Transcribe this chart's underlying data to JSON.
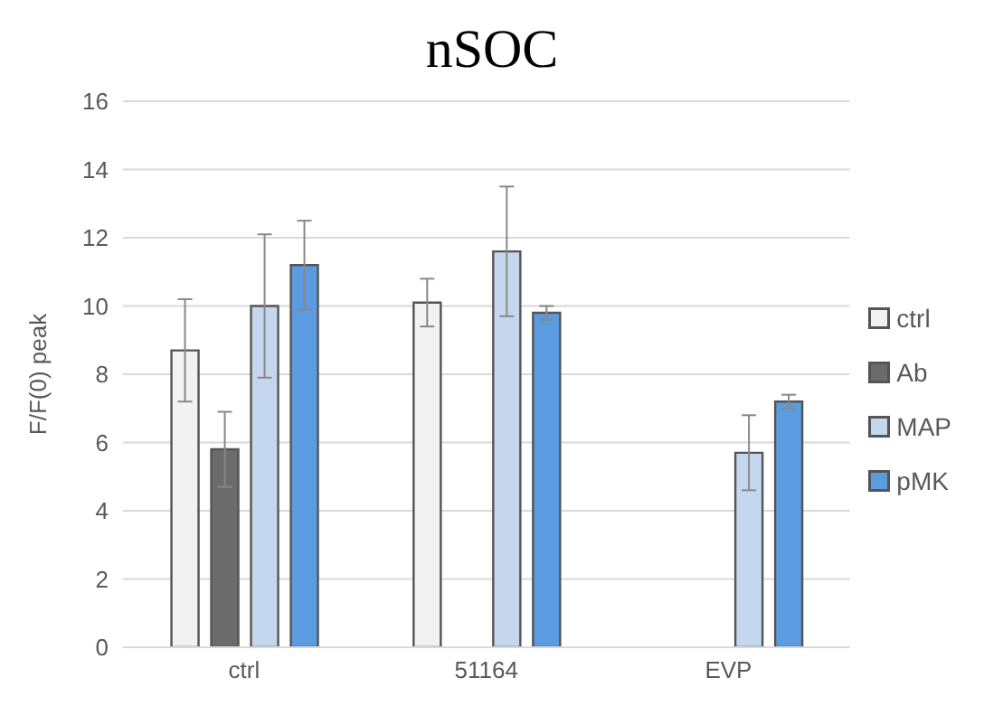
{
  "chart_data": {
    "type": "bar",
    "title": "nSOC",
    "ylabel": "F/F(0) peak",
    "categories": [
      "ctrl",
      "51164",
      "EVP"
    ],
    "series": [
      {
        "name": "ctrl",
        "color": "#f2f2f2",
        "values": [
          8.7,
          10.1,
          null
        ],
        "errors": [
          1.5,
          0.7,
          null
        ]
      },
      {
        "name": "Ab",
        "color": "#6b6b6b",
        "values": [
          5.8,
          null,
          null
        ],
        "errors": [
          1.1,
          null,
          null
        ]
      },
      {
        "name": "MAP",
        "color": "#c5d7ee",
        "values": [
          10.0,
          11.6,
          5.7
        ],
        "errors": [
          2.1,
          1.9,
          1.1
        ]
      },
      {
        "name": "pMK",
        "color": "#5b9be0",
        "values": [
          11.2,
          9.8,
          7.2
        ],
        "errors": [
          1.3,
          0.2,
          0.2
        ]
      }
    ],
    "ylim": [
      0,
      16
    ],
    "yticks": [
      0,
      2,
      4,
      6,
      8,
      10,
      12,
      14,
      16
    ],
    "grid": "y",
    "legend": "right"
  }
}
